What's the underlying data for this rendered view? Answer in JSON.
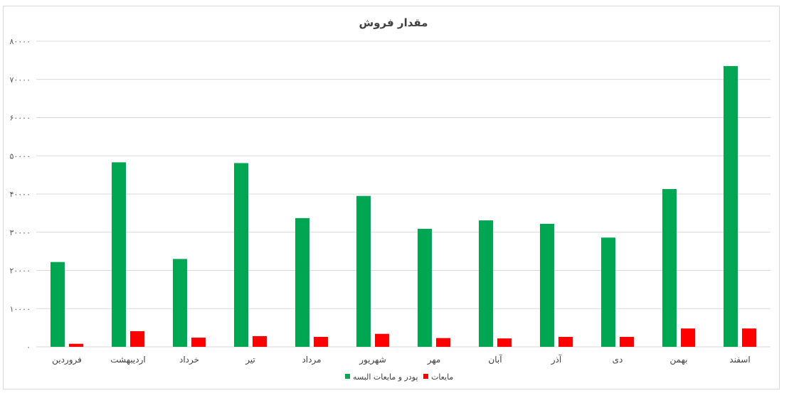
{
  "chart_data": {
    "type": "bar",
    "title": "مقدار فروش",
    "categories": [
      "فروردین",
      "اردیبهشت",
      "خرداد",
      "تیر",
      "مرداد",
      "شهریور",
      "مهر",
      "آبان",
      "آذر",
      "دی",
      "بهمن",
      "اسفند"
    ],
    "series": [
      {
        "name": "پودر و مایعات البسه",
        "color": "#00a651",
        "values": [
          22200,
          48300,
          23000,
          48100,
          33700,
          39500,
          30900,
          33100,
          32200,
          28600,
          41300,
          73500
        ]
      },
      {
        "name": "مایعات",
        "color": "#ff0000",
        "values": [
          800,
          4100,
          2400,
          2800,
          2600,
          3400,
          2300,
          2200,
          2600,
          2600,
          4800,
          4800
        ]
      }
    ],
    "ylim": [
      0,
      80000
    ],
    "yticks": [
      0,
      10000,
      20000,
      30000,
      40000,
      50000,
      60000,
      70000,
      80000
    ],
    "ytick_labels": [
      "۰",
      "۱۰۰۰۰",
      "۲۰۰۰۰",
      "۳۰۰۰۰",
      "۴۰۰۰۰",
      "۵۰۰۰۰",
      "۶۰۰۰۰",
      "۷۰۰۰۰",
      "۸۰۰۰۰"
    ],
    "grid": true,
    "legend_position": "bottom"
  }
}
